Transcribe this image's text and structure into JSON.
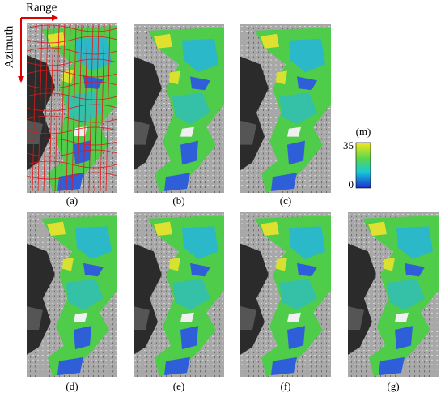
{
  "axes": {
    "range": "Range",
    "azimuth": "Azimuth"
  },
  "colorbar": {
    "unit": "(m)",
    "max": 35,
    "min": 0
  },
  "panels": [
    "(a)",
    "(b)",
    "(c)",
    "(d)",
    "(e)",
    "(f)",
    "(g)"
  ]
}
